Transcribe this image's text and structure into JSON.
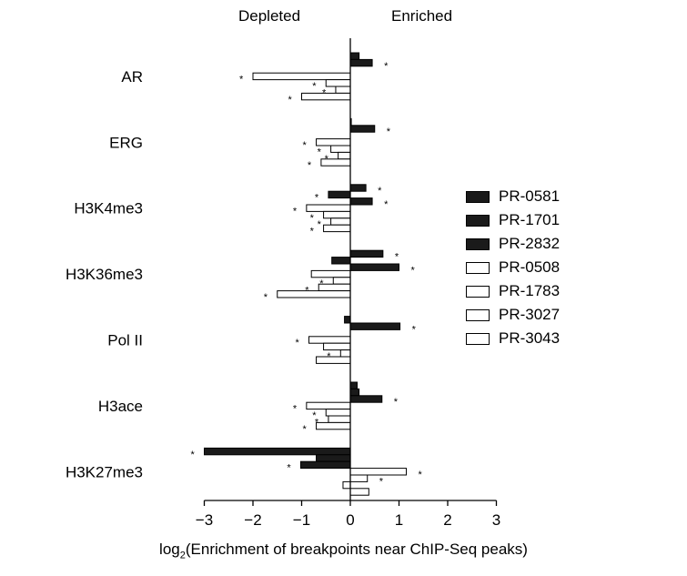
{
  "header": {
    "left": "Depleted",
    "right": "Enriched"
  },
  "legend": [
    {
      "label": "PR-0581",
      "fill": "#1a1a1a"
    },
    {
      "label": "PR-1701",
      "fill": "#1a1a1a"
    },
    {
      "label": "PR-2832",
      "fill": "#1a1a1a"
    },
    {
      "label": "PR-0508",
      "fill": "#ffffff"
    },
    {
      "label": "PR-1783",
      "fill": "#ffffff"
    },
    {
      "label": "PR-3027",
      "fill": "#ffffff"
    },
    {
      "label": "PR-3043",
      "fill": "#ffffff"
    }
  ],
  "xlabel_main": "log",
  "xlabel_sub": "2",
  "xlabel_rest": "(Enrichment of breakpoints near ChIP-Seq peaks)",
  "chart_data": {
    "type": "bar",
    "orientation": "horizontal",
    "categories": [
      "AR",
      "ERG",
      "H3K4me3",
      "H3K36me3",
      "Pol II",
      "H3ace",
      "H3K27me3"
    ],
    "series": [
      {
        "name": "PR-0581",
        "values": [
          0.18,
          0.02,
          0.32,
          0.67,
          -0.12,
          0.14,
          -3.0
        ],
        "significant": [
          false,
          false,
          true,
          true,
          false,
          false,
          true
        ]
      },
      {
        "name": "PR-1701",
        "values": [
          0.45,
          0.5,
          -0.45,
          -0.38,
          1.02,
          0.18,
          -0.7
        ],
        "significant": [
          true,
          true,
          true,
          false,
          true,
          false,
          false
        ]
      },
      {
        "name": "PR-2832",
        "values": [
          0.0,
          0.0,
          0.45,
          1.0,
          0.0,
          0.65,
          -1.02
        ],
        "significant": [
          false,
          false,
          true,
          true,
          false,
          true,
          true
        ]
      },
      {
        "name": "PR-0508",
        "values": [
          -2.0,
          -0.7,
          -0.9,
          -0.8,
          -0.85,
          -0.9,
          1.15
        ],
        "significant": [
          true,
          true,
          true,
          false,
          true,
          true,
          true
        ]
      },
      {
        "name": "PR-1783",
        "values": [
          -0.5,
          -0.4,
          -0.55,
          -0.35,
          -0.55,
          -0.5,
          0.35
        ],
        "significant": [
          true,
          true,
          true,
          true,
          false,
          true,
          true
        ]
      },
      {
        "name": "PR-3027",
        "values": [
          -0.3,
          -0.25,
          -0.4,
          -0.65,
          -0.2,
          -0.45,
          -0.15
        ],
        "significant": [
          true,
          true,
          true,
          true,
          true,
          true,
          false
        ]
      },
      {
        "name": "PR-3043",
        "values": [
          -1.0,
          -0.6,
          -0.55,
          -1.5,
          -0.7,
          -0.7,
          0.38
        ],
        "significant": [
          true,
          true,
          true,
          true,
          false,
          true,
          false
        ]
      }
    ],
    "xlim": [
      -3,
      3
    ],
    "xticks": [
      -3,
      -2,
      -1,
      0,
      1,
      2,
      3
    ],
    "significance_marker": "*"
  }
}
